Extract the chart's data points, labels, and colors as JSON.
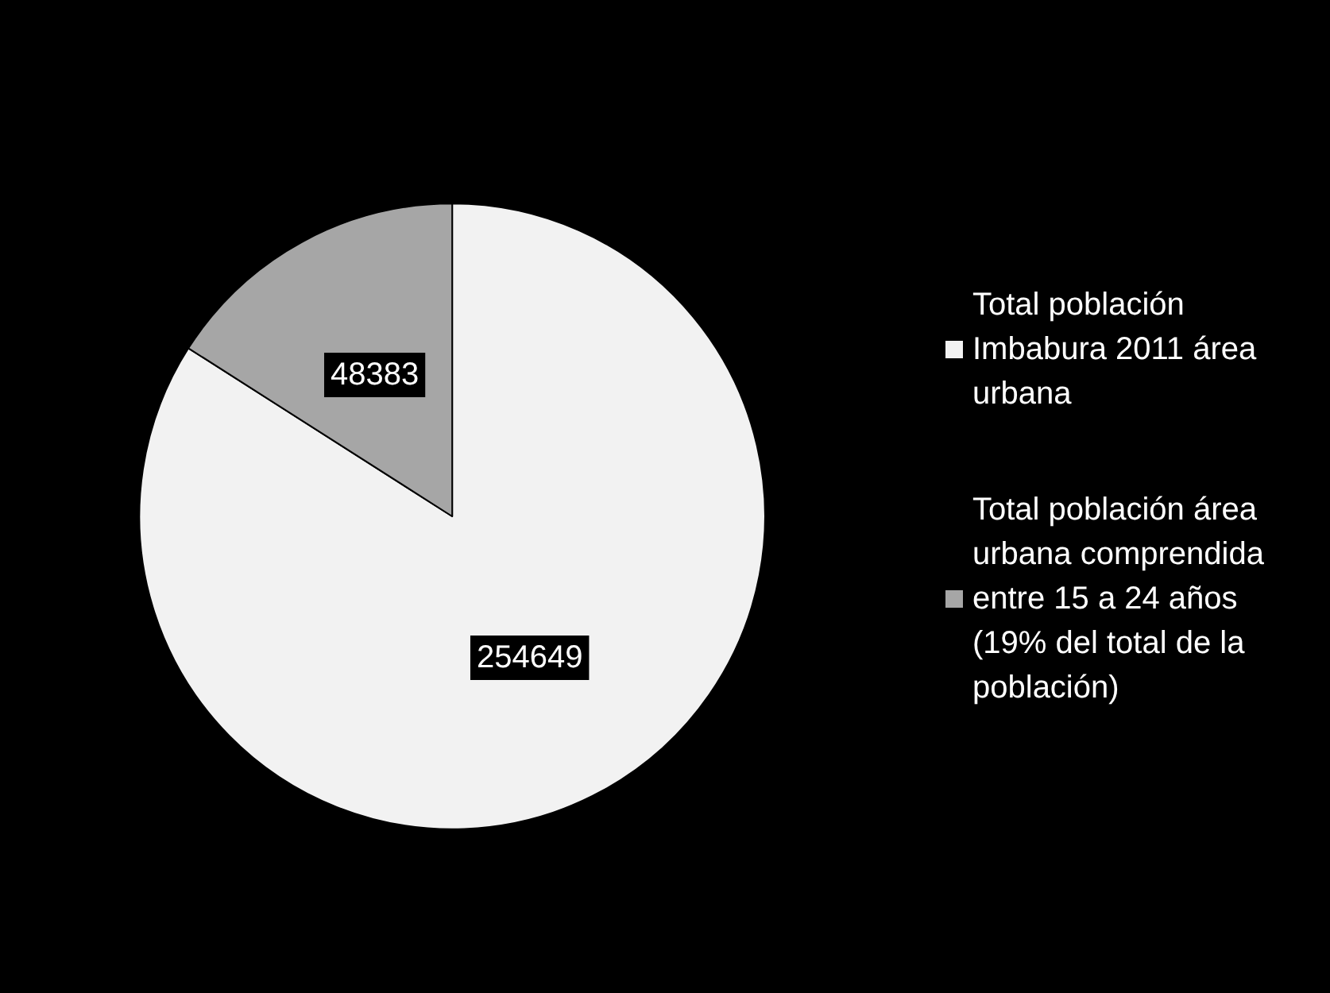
{
  "chart_data": {
    "type": "pie",
    "categories": [
      "Total población Imbabura 2011 área urbana",
      "Total población área urbana comprendida entre 15 a 24 años (19% del total de la población)"
    ],
    "values": [
      254649,
      48383
    ],
    "colors": [
      "#f2f2f2",
      "#a6a6a6"
    ],
    "data_labels": true,
    "legend": "right"
  }
}
